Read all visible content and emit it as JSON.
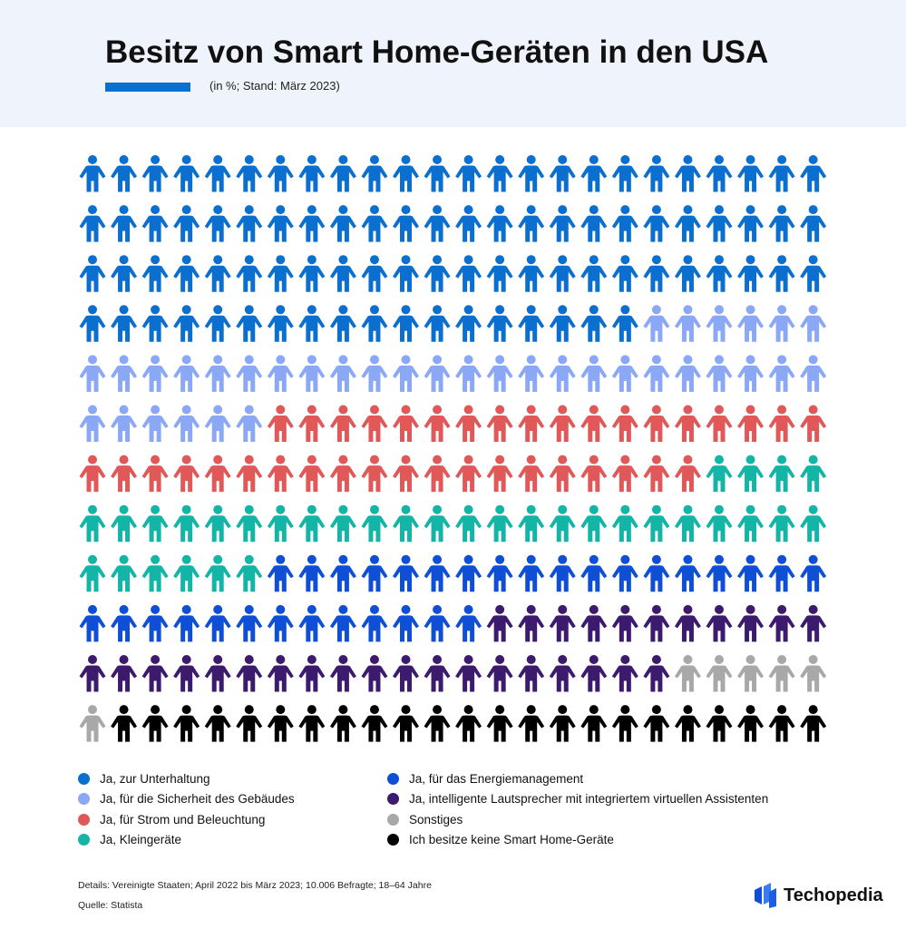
{
  "header": {
    "title": "Besitz von Smart Home-Geräten in den USA",
    "subtitle": "(in %; Stand: März 2023)",
    "accent_color": "#0a6fce"
  },
  "chart_data": {
    "type": "pictogram",
    "unit": "%",
    "icon": "person-icon",
    "grid": {
      "columns": 24,
      "rows": 12
    },
    "series": [
      {
        "name": "Ja, zur Unterhaltung",
        "value": 90,
        "color": "#0a6fce"
      },
      {
        "name": "Ja, für die Sicherheit des Gebäudes",
        "value": 36,
        "color": "#8aa8f5"
      },
      {
        "name": "Ja, für Strom und Beleuchtung",
        "value": 38,
        "color": "#e05858"
      },
      {
        "name": "Ja, Kleingeräte",
        "value": 34,
        "color": "#12b5a6"
      },
      {
        "name": "Ja, für das Energiemanagement",
        "value": 31,
        "color": "#0e4fd6"
      },
      {
        "name": "Ja, intelligente Lautsprecher mit integriertem virtuellen Assistenten",
        "value": 30,
        "color": "#3c1a6e"
      },
      {
        "name": "Sonstiges",
        "value": 6,
        "color": "#a8a8a8"
      },
      {
        "name": "Ich besitze keine Smart Home-Geräte",
        "value": 19,
        "color": "#000000"
      }
    ]
  },
  "legend": {
    "left": [
      {
        "label": "Ja, zur Unterhaltung",
        "color": "#0a6fce"
      },
      {
        "label": "Ja, für die Sicherheit des Gebäudes",
        "color": "#8aa8f5"
      },
      {
        "label": "Ja, für Strom und Beleuchtung",
        "color": "#e05858"
      },
      {
        "label": "Ja, Kleingeräte",
        "color": "#12b5a6"
      }
    ],
    "right": [
      {
        "label": "Ja, für das Energiemanagement",
        "color": "#0e4fd6"
      },
      {
        "label": "Ja, intelligente Lautsprecher mit integriertem virtuellen Assistenten",
        "color": "#3c1a6e"
      },
      {
        "label": "Sonstiges",
        "color": "#a8a8a8"
      },
      {
        "label": "Ich besitze keine Smart Home-Geräte",
        "color": "#000000"
      }
    ]
  },
  "footer": {
    "details": "Details: Vereinigte Staaten; April 2022 bis März 2023; 10.006 Befragte; 18–64 Jahre",
    "source": "Quelle: Statista",
    "brand": "Techopedia"
  }
}
